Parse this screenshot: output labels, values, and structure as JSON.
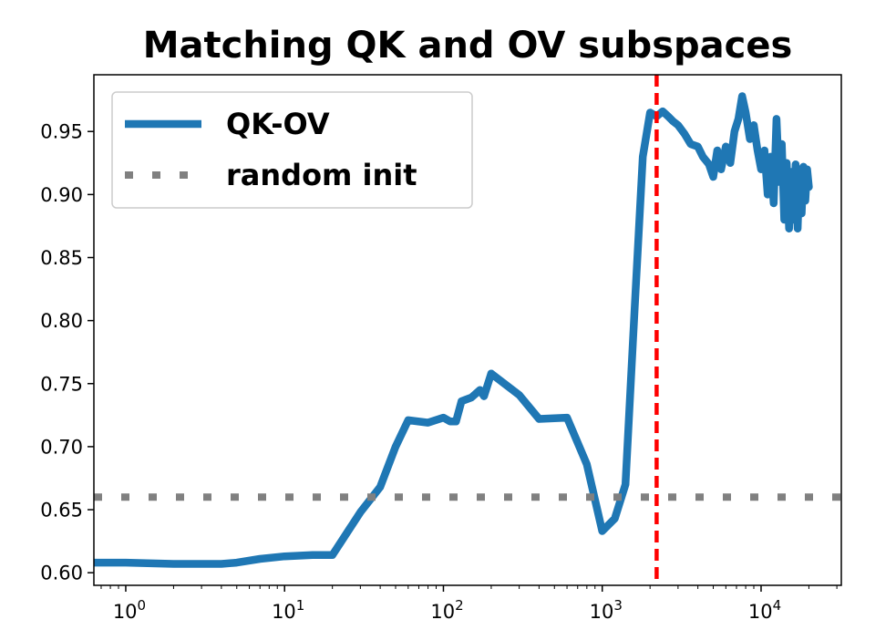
{
  "chart_data": {
    "type": "line",
    "title": "Matching QK and OV subspaces",
    "xlabel": "",
    "ylabel": "",
    "xscale": "log",
    "xlim": [
      0.63,
      32000
    ],
    "ylim": [
      0.59,
      0.995
    ],
    "grid": false,
    "legend_position": "top-left",
    "x_ticks": [
      {
        "value": 1,
        "base": "10",
        "exp": "0"
      },
      {
        "value": 10,
        "base": "10",
        "exp": "1"
      },
      {
        "value": 100,
        "base": "10",
        "exp": "2"
      },
      {
        "value": 1000,
        "base": "10",
        "exp": "3"
      },
      {
        "value": 10000,
        "base": "10",
        "exp": "4"
      }
    ],
    "y_ticks": [
      "0.60",
      "0.65",
      "0.70",
      "0.75",
      "0.80",
      "0.85",
      "0.90",
      "0.95"
    ],
    "series": [
      {
        "name": "QK-OV",
        "color": "#1f77b4",
        "style": "solid",
        "x": [
          0.63,
          1,
          2,
          3,
          4,
          5,
          7,
          10,
          15,
          20,
          30,
          40,
          50,
          60,
          80,
          100,
          110,
          120,
          130,
          150,
          170,
          180,
          200,
          300,
          400,
          600,
          800,
          1000,
          1200,
          1400,
          1600,
          1800,
          2000,
          2200,
          2400,
          2600,
          2800,
          3000,
          3300,
          3600,
          4000,
          4300,
          4700,
          5000,
          5300,
          5600,
          6000,
          6400,
          6800,
          7200,
          7600,
          8000,
          8500,
          9000,
          9500,
          10000,
          10500,
          11000,
          11500,
          12000,
          12500,
          13000,
          13500,
          14000,
          14500,
          15000,
          15500,
          16000,
          16500,
          17000,
          17500,
          18000,
          18500,
          19000,
          19500,
          20000
        ],
        "y": [
          0.608,
          0.608,
          0.607,
          0.607,
          0.607,
          0.608,
          0.611,
          0.613,
          0.614,
          0.614,
          0.648,
          0.668,
          0.7,
          0.721,
          0.719,
          0.723,
          0.72,
          0.72,
          0.736,
          0.739,
          0.745,
          0.74,
          0.758,
          0.741,
          0.722,
          0.723,
          0.686,
          0.633,
          0.643,
          0.67,
          0.81,
          0.93,
          0.965,
          0.962,
          0.966,
          0.962,
          0.958,
          0.955,
          0.948,
          0.94,
          0.938,
          0.93,
          0.924,
          0.914,
          0.935,
          0.92,
          0.938,
          0.925,
          0.95,
          0.96,
          0.978,
          0.965,
          0.944,
          0.955,
          0.935,
          0.92,
          0.935,
          0.9,
          0.93,
          0.893,
          0.96,
          0.91,
          0.94,
          0.88,
          0.925,
          0.873,
          0.918,
          0.88,
          0.924,
          0.873,
          0.92,
          0.885,
          0.922,
          0.895,
          0.92,
          0.906
        ]
      },
      {
        "name": "random init",
        "color": "#808080",
        "style": "dotted",
        "x": [
          0.63,
          32000
        ],
        "y": [
          0.66,
          0.66
        ]
      }
    ],
    "annotations": [
      {
        "type": "vline",
        "x": 2200,
        "color": "#ff0000",
        "style": "dashed"
      }
    ]
  }
}
